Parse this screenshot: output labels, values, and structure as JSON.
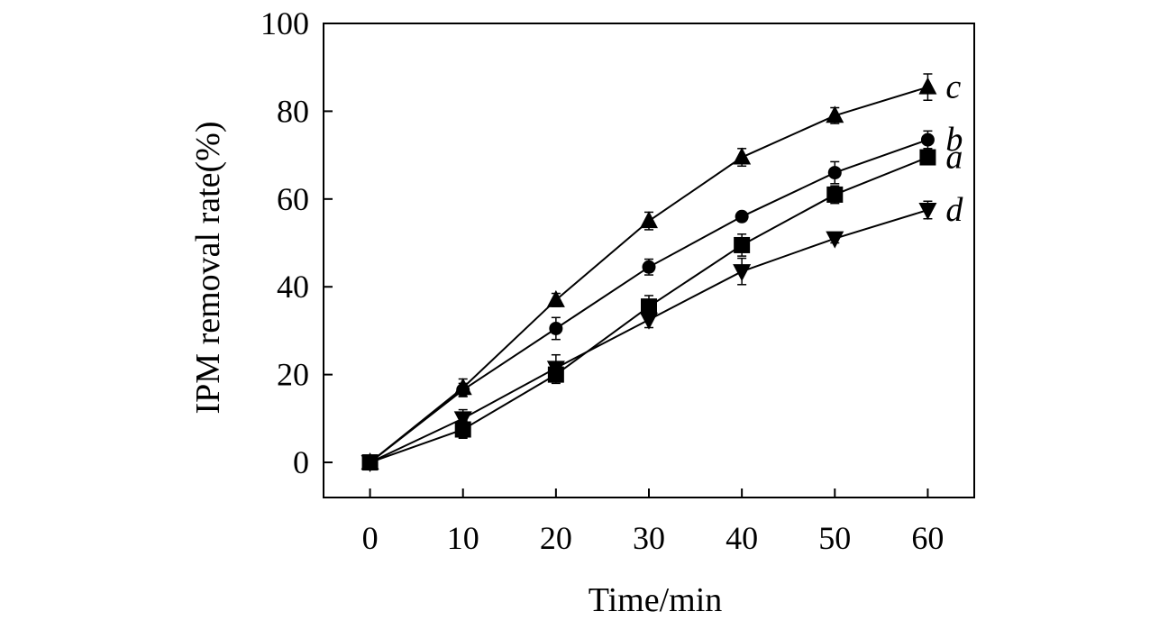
{
  "chart_data": {
    "type": "line",
    "title": "",
    "xlabel": "Time/min",
    "ylabel": "IPM removal rate(%)",
    "xlim": [
      -5,
      65
    ],
    "ylim": [
      -8,
      100
    ],
    "xticks": [
      0,
      10,
      20,
      30,
      40,
      50,
      60
    ],
    "yticks": [
      0,
      20,
      40,
      60,
      80,
      100
    ],
    "grid": false,
    "x": [
      0,
      10,
      20,
      30,
      40,
      50,
      60
    ],
    "series": [
      {
        "name": "a",
        "marker": "square",
        "values": [
          0,
          7.5,
          20,
          35.5,
          49.5,
          61,
          69.5
        ],
        "errors": [
          0.8,
          2.0,
          2.0,
          2.5,
          2.5,
          2.0,
          1.5
        ]
      },
      {
        "name": "b",
        "marker": "circle",
        "values": [
          0,
          16.5,
          30.5,
          44.5,
          56,
          66,
          73.5
        ],
        "errors": [
          0.8,
          1.5,
          2.5,
          1.8,
          1.0,
          2.5,
          2.0
        ]
      },
      {
        "name": "c",
        "marker": "triangle-up",
        "values": [
          0,
          17,
          37,
          55,
          69.5,
          79,
          85.5
        ],
        "errors": [
          0.8,
          2.0,
          1.5,
          2.0,
          2.0,
          1.8,
          3.0
        ]
      },
      {
        "name": "d",
        "marker": "triangle-down",
        "values": [
          0,
          10,
          21.5,
          32.5,
          43.5,
          51,
          57.5
        ],
        "errors": [
          0.8,
          2.0,
          3.0,
          1.8,
          3.0,
          1.0,
          2.0
        ]
      }
    ]
  }
}
